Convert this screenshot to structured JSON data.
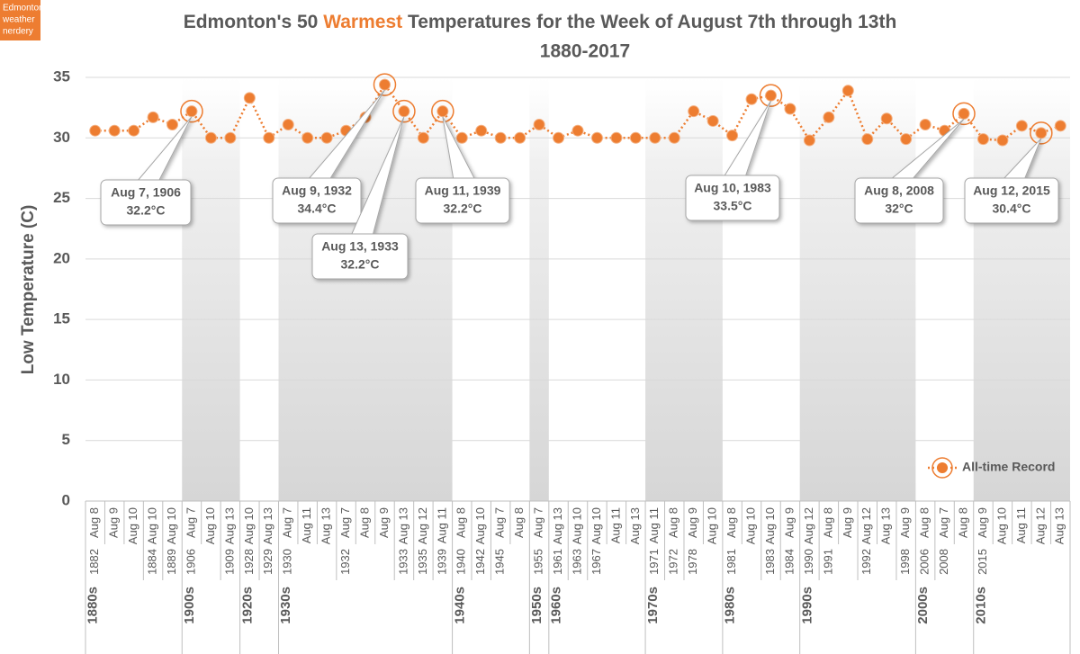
{
  "chart_data": {
    "type": "line",
    "badge": [
      "Edmonton",
      "weather",
      "nerdery"
    ],
    "title_parts": [
      "Edmonton's 50 ",
      "Warmest",
      " Temperatures for the Week of  August 7th through 13th"
    ],
    "subtitle": "1880-2017",
    "y_label": "Low Temperature (C)",
    "categories": [
      "Aug 8",
      "Aug 9",
      "Aug 10",
      "Aug 10",
      "Aug 10",
      "Aug 7",
      "Aug 10",
      "Aug 13",
      "Aug 10",
      "Aug 13",
      "Aug 7",
      "Aug 11",
      "Aug 13",
      "Aug 7",
      "Aug 8",
      "Aug 9",
      "Aug 13",
      "Aug 12",
      "Aug 11",
      "Aug 8",
      "Aug 10",
      "Aug 7",
      "Aug 8",
      "Aug 7",
      "Aug 13",
      "Aug 10",
      "Aug 10",
      "Aug 11",
      "Aug 13",
      "Aug 11",
      "Aug 8",
      "Aug 9",
      "Aug 10",
      "Aug 8",
      "Aug 10",
      "Aug 10",
      "Aug 9",
      "Aug 12",
      "Aug 8",
      "Aug 9",
      "Aug 12",
      "Aug 13",
      "Aug 9",
      "Aug 8",
      "Aug 7",
      "Aug 8",
      "Aug 9",
      "Aug 10",
      "Aug 11",
      "Aug 12",
      "Aug 13"
    ],
    "years": [
      "1882",
      null,
      null,
      "1884",
      "1889",
      "1906",
      null,
      "1909",
      "1928",
      "1929",
      "1930",
      null,
      null,
      "1932",
      null,
      null,
      "1933",
      "1935",
      "1939",
      "1940",
      "1942",
      "1945",
      null,
      "1955",
      "1961",
      "1963",
      "1967",
      null,
      null,
      "1971",
      "1972",
      "1978",
      null,
      "1981",
      null,
      "1983",
      "1984",
      "1990",
      "1991",
      null,
      "1992",
      null,
      "1998",
      "2006",
      "2008",
      null,
      "2015",
      null,
      null,
      null,
      null
    ],
    "decades": [
      "1880s",
      null,
      null,
      null,
      null,
      "1900s",
      null,
      null,
      "1920s",
      null,
      "1930s",
      null,
      null,
      null,
      null,
      null,
      null,
      null,
      null,
      "1940s",
      null,
      null,
      null,
      "1950s",
      "1960s",
      null,
      null,
      null,
      null,
      "1970s",
      null,
      null,
      null,
      "1980s",
      null,
      null,
      null,
      "1990s",
      null,
      null,
      null,
      null,
      null,
      "2000s",
      null,
      null,
      "2010s",
      null,
      null,
      null,
      null,
      null
    ],
    "series": [
      {
        "color": "#ED7D31",
        "values": [
          30.6,
          30.6,
          30.6,
          31.7,
          31.1,
          32.2,
          30.0,
          30.0,
          33.3,
          30.0,
          31.1,
          30.0,
          30.0,
          30.6,
          31.7,
          34.4,
          32.2,
          30.0,
          32.2,
          30.0,
          30.6,
          30.0,
          30.0,
          31.1,
          30.0,
          30.6,
          30.0,
          30.0,
          30.0,
          30.0,
          30.0,
          32.2,
          31.4,
          30.2,
          33.2,
          33.5,
          32.4,
          29.8,
          31.7,
          33.9,
          29.9,
          31.6,
          29.9,
          31.1,
          30.6,
          32.0,
          29.9,
          29.8,
          31.0,
          30.4,
          31.0
        ]
      },
      {
        "name": "All-time Record",
        "color": "#ED7D31",
        "values": [
          null,
          null,
          null,
          null,
          null,
          32.2,
          null,
          null,
          null,
          null,
          null,
          null,
          null,
          null,
          null,
          34.4,
          32.2,
          null,
          32.2,
          null,
          null,
          null,
          null,
          null,
          null,
          null,
          null,
          null,
          null,
          null,
          null,
          null,
          null,
          null,
          null,
          33.5,
          null,
          null,
          null,
          null,
          null,
          null,
          null,
          null,
          null,
          32.0,
          null,
          null,
          null,
          30.4,
          null
        ]
      }
    ],
    "annotations": [
      {
        "label": "Aug 7, 1906",
        "value_label": "32.2°C"
      },
      {
        "label": "Aug 9, 1932",
        "value_label": "34.4°C"
      },
      {
        "label": "Aug 13, 1933",
        "value_label": "32.2°C"
      },
      {
        "label": "Aug 11, 1939",
        "value_label": "32.2°C"
      },
      {
        "label": "Aug 10, 1983",
        "value_label": "33.5°C"
      },
      {
        "label": "Aug 8, 2008",
        "value_label": "32°C"
      },
      {
        "label": "Aug 12, 2015",
        "value_label": "30.4°C"
      }
    ],
    "ylim": [
      0,
      35
    ],
    "yticks": [
      0,
      5,
      10,
      15,
      20,
      25,
      30,
      35
    ],
    "grid": true,
    "legend": "lower right"
  }
}
